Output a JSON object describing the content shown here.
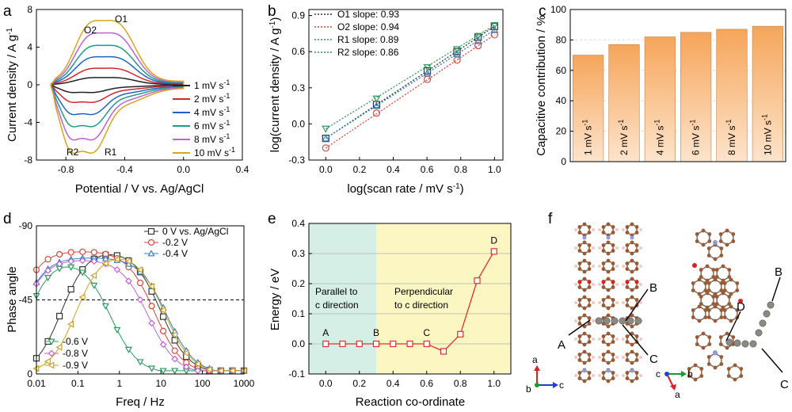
{
  "panels": {
    "a": {
      "letter": "a",
      "chart_data": {
        "type": "line",
        "xlabel": "Potential / V vs. Ag/AgCl",
        "ylabel": "Current density / A g",
        "ylabel_sup": "-1",
        "xlim": [
          -1.0,
          0.4
        ],
        "ylim": [
          -8,
          8
        ],
        "xticks": [
          "-0.8",
          "-0.4",
          "0.0",
          "0.4"
        ],
        "xtick_values": [
          -0.8,
          -0.4,
          0.0,
          0.4
        ],
        "yticks": [
          "-8",
          "-4",
          "0",
          "4",
          "8"
        ],
        "ytick_values": [
          -8,
          -4,
          0,
          4,
          8
        ],
        "peaks": [
          "O1",
          "O2",
          "R1",
          "R2"
        ],
        "series": [
          {
            "name": "1 mV s",
            "sup": "-1",
            "color": "#222222",
            "peak": 0.7
          },
          {
            "name": "2 mV s",
            "sup": "-1",
            "color": "#d6262b",
            "peak": 1.6
          },
          {
            "name": "4 mV s",
            "sup": "-1",
            "color": "#1f63c8",
            "peak": 2.7
          },
          {
            "name": "6 mV s",
            "sup": "-1",
            "color": "#1a9e84",
            "peak": 3.8
          },
          {
            "name": "8 mV s",
            "sup": "-1",
            "color": "#c060d8",
            "peak": 5.0
          },
          {
            "name": "10 mV s",
            "sup": "-1",
            "color": "#d8a61a",
            "peak": 6.2
          }
        ]
      }
    },
    "b": {
      "letter": "b",
      "chart_data": {
        "type": "scatter",
        "xlabel": "log(scan rate / mV s",
        "xlabel_sup": "-1",
        "xlabel_end": ")",
        "ylabel": "log(current density / A g",
        "ylabel_sup": "-1",
        "ylabel_end": ")",
        "xlim": [
          -0.1,
          1.05
        ],
        "ylim": [
          -0.3,
          0.95
        ],
        "xticks": [
          "0.0",
          "0.2",
          "0.4",
          "0.6",
          "0.8",
          "1.0"
        ],
        "xtick_values": [
          0.0,
          0.2,
          0.4,
          0.6,
          0.8,
          1.0
        ],
        "yticks": [
          "-0.3",
          "0.0",
          "0.3",
          "0.6",
          "0.9"
        ],
        "ytick_values": [
          -0.3,
          0.0,
          0.3,
          0.6,
          0.9
        ],
        "x": [
          0.0,
          0.301,
          0.602,
          0.778,
          0.903,
          1.0
        ],
        "series": [
          {
            "name": "O1 slope: 0.93",
            "color": "#333333",
            "marker": "square",
            "y": [
              -0.12,
              0.16,
              0.44,
              0.6,
              0.72,
              0.81
            ]
          },
          {
            "name": "O2 slope: 0.94",
            "color": "#e0453a",
            "marker": "circle",
            "y": [
              -0.2,
              0.09,
              0.37,
              0.53,
              0.65,
              0.74
            ]
          },
          {
            "name": "R1 slope: 0.89",
            "color": "#2f7fc7",
            "marker": "triangle",
            "y": [
              -0.12,
              0.15,
              0.42,
              0.58,
              0.69,
              0.78
            ]
          },
          {
            "name": "R2 slope: 0.86",
            "color": "#2a9a5a",
            "marker": "triangle-down",
            "y": [
              -0.04,
              0.21,
              0.47,
              0.62,
              0.73,
              0.82
            ]
          }
        ]
      }
    },
    "c": {
      "letter": "c",
      "chart_data": {
        "type": "bar",
        "ylabel": "Capacitive contribution / %",
        "ylim": [
          0,
          100
        ],
        "yticks": [
          "0",
          "20",
          "40",
          "60",
          "80",
          "100"
        ],
        "ytick_values": [
          0,
          20,
          40,
          60,
          80,
          100
        ],
        "categories": [
          "1 mV s",
          "2 mV s",
          "4 mV s",
          "6 mV s",
          "8 mV s",
          "10 mV s"
        ],
        "category_sup": "-1",
        "values": [
          70,
          77,
          82,
          85,
          87,
          89
        ],
        "bar_color_top": "#f6a55a",
        "bar_color_bottom": "#fde4cc"
      }
    },
    "d": {
      "letter": "d",
      "chart_data": {
        "type": "line",
        "xlabel": "Freq / Hz",
        "ylabel": "Phase angle",
        "xscale": "log",
        "xlim": [
          0.01,
          1000
        ],
        "ylim": [
          0,
          -90
        ],
        "xticks": [
          "0.01",
          "0.1",
          "1",
          "10",
          "100",
          "1000"
        ],
        "xtick_values": [
          0.01,
          0.1,
          1,
          10,
          100,
          1000
        ],
        "yticks": [
          "-90",
          "-45",
          "0"
        ],
        "ytick_values": [
          -90,
          -45,
          0
        ],
        "reference_line": -45,
        "series": [
          {
            "name": "0 V vs. Ag/AgCl",
            "color": "#333333",
            "marker": "square",
            "fmax": -76,
            "f0": 0.04,
            "fc": 10
          },
          {
            "name": "-0.2 V",
            "color": "#e0453a",
            "marker": "circle",
            "fmax": -75,
            "f0": 0.003,
            "fc": 7
          },
          {
            "name": "-0.4 V",
            "color": "#2f7fc7",
            "marker": "triangle",
            "fmax": -71,
            "f0": 0.004,
            "fc": 14
          },
          {
            "name": "-0.6 V",
            "color": "#2a9a5a",
            "marker": "triangle-down",
            "fmax": -71,
            "f0": 0.006,
            "fc": 0.6
          },
          {
            "name": "-0.8 V",
            "color": "#c45fd6",
            "marker": "diamond",
            "fmax": -70,
            "f0": 0.004,
            "fc": 5
          },
          {
            "name": "-0.9 V",
            "color": "#d0a020",
            "marker": "triangle-left",
            "fmax": -75,
            "f0": 0.09,
            "fc": 12
          }
        ]
      }
    },
    "e": {
      "letter": "e",
      "chart_data": {
        "type": "line",
        "xlabel": "Reaction co-ordinate",
        "ylabel": "Energy / eV",
        "xlim": [
          -0.1,
          1.1
        ],
        "ylim": [
          -0.1,
          0.4
        ],
        "xticks": [
          "0.0",
          "0.2",
          "0.4",
          "0.6",
          "0.8",
          "1.0"
        ],
        "xtick_values": [
          0.0,
          0.2,
          0.4,
          0.6,
          0.8,
          1.0
        ],
        "yticks": [
          "-0.1",
          "0.0",
          "0.1",
          "0.2",
          "0.3",
          "0.4"
        ],
        "ytick_values": [
          -0.1,
          0.0,
          0.1,
          0.2,
          0.3,
          0.4
        ],
        "x": [
          0.0,
          0.1,
          0.2,
          0.3,
          0.4,
          0.5,
          0.6,
          0.7,
          0.8,
          0.9,
          1.0
        ],
        "y": [
          0.0,
          0.0,
          0.0,
          0.0,
          0.0,
          0.0,
          0.0,
          -0.025,
          0.032,
          0.21,
          0.307
        ],
        "color": "#e0302a",
        "regions": [
          {
            "label_lines": [
              "Parallel to",
              "c direction"
            ],
            "from": -0.1,
            "to": 0.3,
            "color": "#d6efe6"
          },
          {
            "label_lines": [
              "Perpendicular",
              "to c direction"
            ],
            "from": 0.3,
            "to": 1.1,
            "color": "#fbf6c2"
          }
        ],
        "point_labels": [
          {
            "text": "A",
            "x": 0.0,
            "y": 0.0
          },
          {
            "text": "B",
            "x": 0.3,
            "y": 0.0
          },
          {
            "text": "C",
            "x": 0.6,
            "y": 0.0
          },
          {
            "text": "D",
            "x": 1.0,
            "y": 0.307
          }
        ]
      }
    },
    "f": {
      "letter": "f",
      "labels": [
        "A",
        "B",
        "C",
        "D",
        "B",
        "C"
      ],
      "axes_left": [
        "a",
        "b",
        "c"
      ],
      "axes_right": [
        "c",
        "b",
        "a"
      ]
    }
  }
}
